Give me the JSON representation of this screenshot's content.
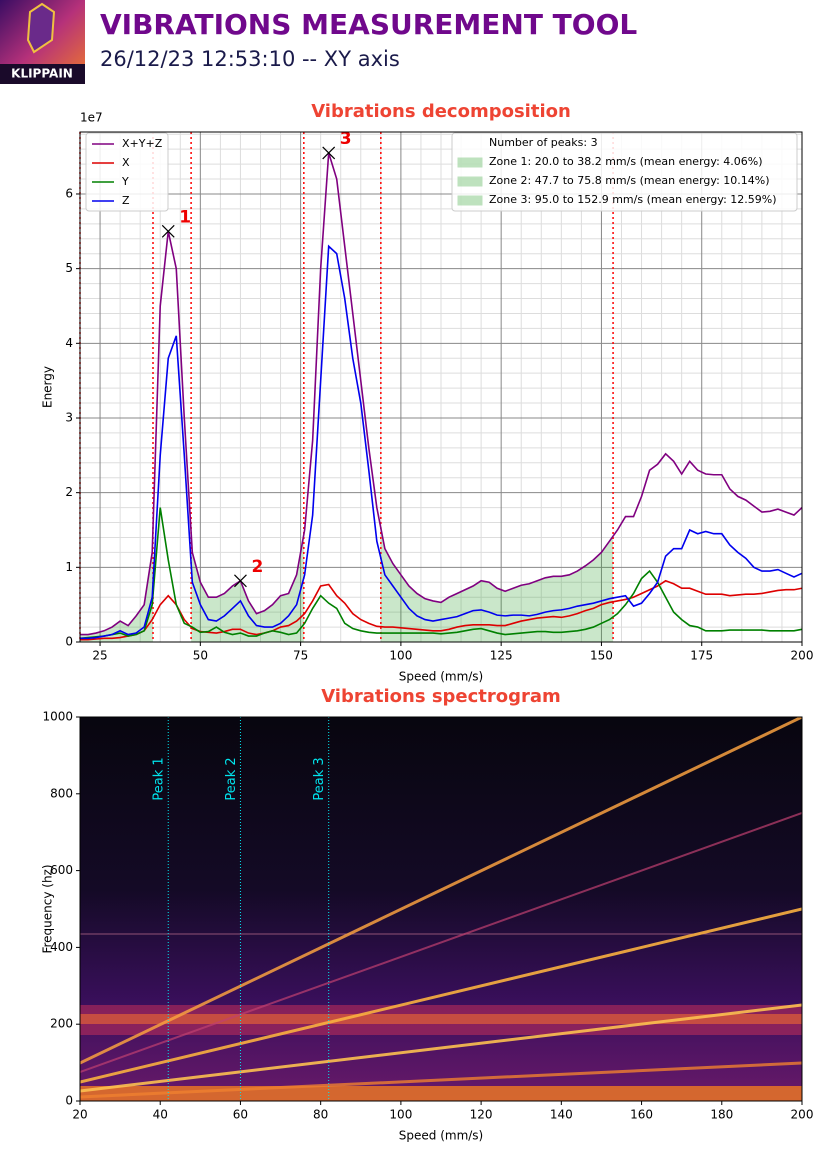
{
  "header": {
    "title": "VIBRATIONS MEASUREMENT TOOL",
    "subtitle": "26/12/23 12:53:10 -- XY axis",
    "logo_text": "KLIPPAIN"
  },
  "chart_data": [
    {
      "type": "line",
      "title": "Vibrations decomposition",
      "xlabel": "Speed (mm/s)",
      "ylabel": "Energy",
      "y_offset_label": "1e7",
      "xlim": [
        20,
        200
      ],
      "ylim": [
        0,
        6.83
      ],
      "xticks": [
        25,
        50,
        75,
        100,
        125,
        150,
        175,
        200
      ],
      "yticks": [
        0,
        1,
        2,
        3,
        4,
        5,
        6
      ],
      "minor_xticks": [
        30,
        35,
        40,
        45,
        55,
        60,
        65,
        70,
        80,
        85,
        90,
        95,
        105,
        110,
        115,
        120,
        130,
        135,
        140,
        145,
        155,
        160,
        165,
        170,
        180,
        185,
        190,
        195
      ],
      "minor_yticks": [
        0.2,
        0.4,
        0.6,
        0.8,
        1.2,
        1.4,
        1.6,
        1.8,
        2.2,
        2.4,
        2.6,
        2.8,
        3.2,
        3.4,
        3.6,
        3.8,
        4.2,
        4.4,
        4.6,
        4.8,
        5.2,
        5.4,
        5.6,
        5.8,
        6.2,
        6.4,
        6.6,
        6.8
      ],
      "grid": true,
      "legend": "upper left",
      "zone_legend": "upper right",
      "x": [
        20,
        22,
        24,
        26,
        28,
        30,
        32,
        34,
        36,
        38,
        40,
        42,
        44,
        46,
        48,
        50,
        52,
        54,
        56,
        58,
        60,
        62,
        64,
        66,
        68,
        70,
        72,
        74,
        76,
        78,
        80,
        82,
        84,
        86,
        88,
        90,
        92,
        94,
        96,
        98,
        100,
        102,
        104,
        106,
        108,
        110,
        112,
        114,
        116,
        118,
        120,
        122,
        124,
        126,
        128,
        130,
        132,
        134,
        136,
        138,
        140,
        142,
        144,
        146,
        148,
        150,
        152,
        154,
        156,
        158,
        160,
        162,
        164,
        166,
        168,
        170,
        172,
        174,
        176,
        178,
        180,
        182,
        184,
        186,
        188,
        190,
        192,
        194,
        196,
        198,
        200
      ],
      "series": [
        {
          "name": "X+Y+Z",
          "color": "#800080",
          "values": [
            0.1,
            0.1,
            0.12,
            0.15,
            0.2,
            0.28,
            0.22,
            0.35,
            0.5,
            1.2,
            4.5,
            5.5,
            5.0,
            3.0,
            1.2,
            0.8,
            0.6,
            0.6,
            0.65,
            0.75,
            0.82,
            0.55,
            0.38,
            0.42,
            0.5,
            0.62,
            0.65,
            0.9,
            1.5,
            2.7,
            5.0,
            6.55,
            6.2,
            5.3,
            4.4,
            3.5,
            2.6,
            1.8,
            1.25,
            1.05,
            0.9,
            0.75,
            0.65,
            0.58,
            0.55,
            0.53,
            0.6,
            0.65,
            0.7,
            0.75,
            0.82,
            0.8,
            0.72,
            0.68,
            0.72,
            0.76,
            0.78,
            0.82,
            0.86,
            0.88,
            0.88,
            0.9,
            0.95,
            1.02,
            1.1,
            1.2,
            1.35,
            1.5,
            1.68,
            1.68,
            1.95,
            2.3,
            2.38,
            2.52,
            2.42,
            2.25,
            2.42,
            2.3,
            2.25,
            2.24,
            2.24,
            2.05,
            1.95,
            1.9,
            1.82,
            1.74,
            1.75,
            1.78,
            1.74,
            1.7,
            1.8
          ]
        },
        {
          "name": "X",
          "color": "#dd0000",
          "values": [
            0.03,
            0.03,
            0.04,
            0.05,
            0.05,
            0.06,
            0.08,
            0.1,
            0.15,
            0.3,
            0.5,
            0.62,
            0.5,
            0.3,
            0.18,
            0.14,
            0.13,
            0.12,
            0.14,
            0.17,
            0.17,
            0.12,
            0.1,
            0.12,
            0.15,
            0.2,
            0.22,
            0.28,
            0.38,
            0.55,
            0.75,
            0.77,
            0.62,
            0.52,
            0.38,
            0.3,
            0.25,
            0.21,
            0.2,
            0.2,
            0.19,
            0.18,
            0.17,
            0.16,
            0.15,
            0.15,
            0.17,
            0.2,
            0.22,
            0.23,
            0.23,
            0.23,
            0.22,
            0.22,
            0.25,
            0.28,
            0.3,
            0.32,
            0.33,
            0.34,
            0.33,
            0.35,
            0.38,
            0.42,
            0.45,
            0.5,
            0.53,
            0.55,
            0.57,
            0.6,
            0.65,
            0.7,
            0.75,
            0.82,
            0.78,
            0.72,
            0.72,
            0.68,
            0.64,
            0.64,
            0.64,
            0.62,
            0.63,
            0.64,
            0.64,
            0.65,
            0.67,
            0.69,
            0.7,
            0.7,
            0.72
          ]
        },
        {
          "name": "Y",
          "color": "#008000",
          "values": [
            0.05,
            0.06,
            0.07,
            0.08,
            0.1,
            0.12,
            0.08,
            0.1,
            0.15,
            0.5,
            1.8,
            1.1,
            0.5,
            0.25,
            0.2,
            0.13,
            0.14,
            0.2,
            0.13,
            0.1,
            0.12,
            0.08,
            0.08,
            0.12,
            0.15,
            0.13,
            0.1,
            0.12,
            0.25,
            0.45,
            0.62,
            0.52,
            0.45,
            0.25,
            0.18,
            0.15,
            0.13,
            0.12,
            0.12,
            0.12,
            0.12,
            0.12,
            0.12,
            0.12,
            0.12,
            0.11,
            0.12,
            0.13,
            0.15,
            0.17,
            0.18,
            0.15,
            0.12,
            0.1,
            0.11,
            0.12,
            0.13,
            0.14,
            0.14,
            0.13,
            0.13,
            0.14,
            0.15,
            0.17,
            0.2,
            0.25,
            0.3,
            0.38,
            0.5,
            0.65,
            0.85,
            0.95,
            0.8,
            0.6,
            0.4,
            0.3,
            0.22,
            0.2,
            0.15,
            0.15,
            0.15,
            0.16,
            0.16,
            0.16,
            0.16,
            0.16,
            0.15,
            0.15,
            0.15,
            0.15,
            0.17
          ]
        },
        {
          "name": "Z",
          "color": "#0000ee",
          "values": [
            0.05,
            0.05,
            0.06,
            0.08,
            0.1,
            0.15,
            0.1,
            0.12,
            0.2,
            0.6,
            2.5,
            3.8,
            4.1,
            2.5,
            0.8,
            0.5,
            0.3,
            0.28,
            0.35,
            0.45,
            0.55,
            0.35,
            0.22,
            0.2,
            0.2,
            0.25,
            0.35,
            0.5,
            0.9,
            1.7,
            3.5,
            5.3,
            5.2,
            4.6,
            3.8,
            3.2,
            2.3,
            1.35,
            0.9,
            0.75,
            0.6,
            0.45,
            0.35,
            0.3,
            0.28,
            0.3,
            0.32,
            0.34,
            0.38,
            0.42,
            0.43,
            0.4,
            0.36,
            0.35,
            0.36,
            0.36,
            0.35,
            0.37,
            0.4,
            0.42,
            0.43,
            0.45,
            0.48,
            0.5,
            0.52,
            0.55,
            0.58,
            0.6,
            0.62,
            0.48,
            0.52,
            0.65,
            0.8,
            1.15,
            1.25,
            1.25,
            1.5,
            1.45,
            1.48,
            1.45,
            1.45,
            1.3,
            1.2,
            1.12,
            1.0,
            0.95,
            0.95,
            0.97,
            0.92,
            0.87,
            0.92
          ]
        }
      ],
      "peaks": {
        "labels": [
          "1",
          "2",
          "3"
        ],
        "x": [
          42,
          60,
          82
        ],
        "y": [
          5.5,
          0.82,
          6.55
        ]
      },
      "peaks_count_label": "Number of peaks: 3",
      "zone_color": "#2ca02c",
      "bound_color": "#ff0000",
      "zones": [
        {
          "start": 20.0,
          "end": 38.2,
          "label": "Zone 1: 20.0 to 38.2 mm/s (mean energy: 4.06%)"
        },
        {
          "start": 47.7,
          "end": 75.8,
          "label": "Zone 2: 47.7 to 75.8 mm/s (mean energy: 10.14%)"
        },
        {
          "start": 95.0,
          "end": 152.9,
          "label": "Zone 3: 95.0 to 152.9 mm/s (mean energy: 12.59%)"
        }
      ]
    },
    {
      "type": "spectrogram",
      "title": "Vibrations spectrogram",
      "xlabel": "Speed (mm/s)",
      "ylabel": "Frequency (hz)",
      "xlim": [
        20,
        200
      ],
      "ylim": [
        0,
        1000
      ],
      "xticks": [
        20,
        40,
        60,
        80,
        100,
        120,
        140,
        160,
        180,
        200
      ],
      "yticks": [
        0,
        200,
        400,
        600,
        800,
        1000
      ],
      "grid": false,
      "peak_color": "#00e5ee",
      "peak_lines": {
        "labels": [
          "Peak 1",
          "Peak 2",
          "Peak 3"
        ],
        "x": [
          42,
          60,
          82
        ]
      }
    }
  ]
}
